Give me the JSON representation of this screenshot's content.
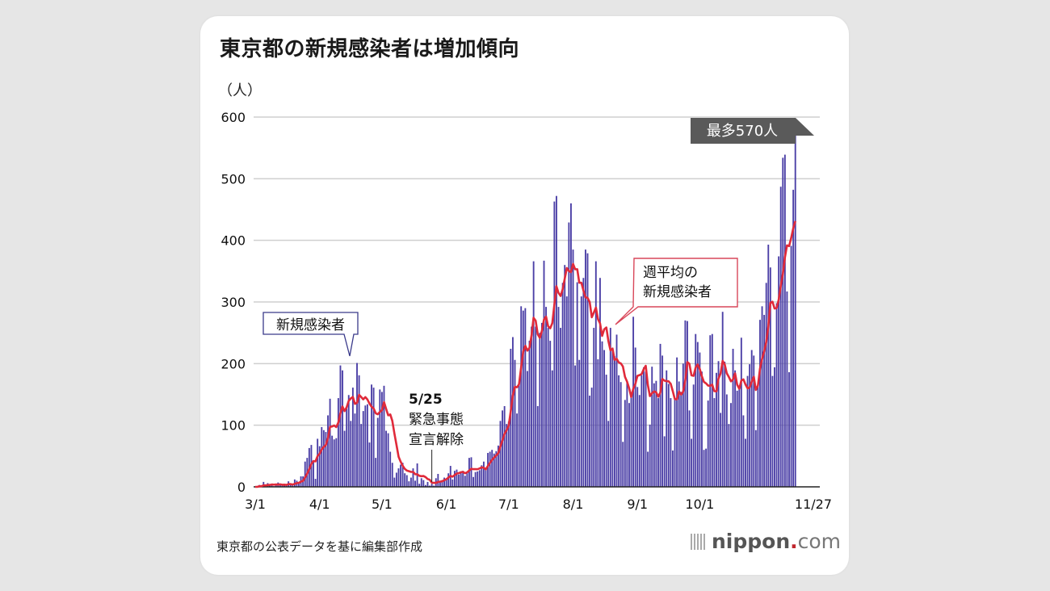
{
  "header": {
    "title": "東京都の新規感染者は増加傾向"
  },
  "footer": {
    "source": "東京都の公表データを基に編集部作成",
    "logo": {
      "nip": "nippon",
      "dot": ".",
      "com": "com"
    }
  },
  "colors": {
    "bar": "#4b3fa6",
    "line": "#e02a3a",
    "callout_dark": "#5a5a5a",
    "grid": "#cfcfcf",
    "card": "#ffffff",
    "background": "#e6e6e6"
  },
  "chart_data": {
    "type": "bar",
    "title": "東京都の新規感染者は増加傾向",
    "ylabel": "（人）",
    "xlabel": "",
    "ylim": [
      0,
      600
    ],
    "yticks": [
      0,
      100,
      200,
      300,
      400,
      500,
      600
    ],
    "xticks": [
      {
        "label": "3/1",
        "day": 0
      },
      {
        "label": "4/1",
        "day": 31
      },
      {
        "label": "5/1",
        "day": 61
      },
      {
        "label": "6/1",
        "day": 92
      },
      {
        "label": "7/1",
        "day": 122
      },
      {
        "label": "8/1",
        "day": 153
      },
      {
        "label": "9/1",
        "day": 184
      },
      {
        "label": "10/1",
        "day": 214
      },
      {
        "label": "11/27",
        "day": 271
      }
    ],
    "x_start": "3/1",
    "x_end": "11/27",
    "grid": true,
    "series": [
      {
        "name": "新規感染者",
        "type": "bar",
        "values": [
          0,
          0,
          3,
          1,
          8,
          2,
          6,
          2,
          5,
          1,
          3,
          7,
          4,
          2,
          3,
          2,
          9,
          4,
          2,
          12,
          10,
          6,
          17,
          17,
          41,
          47,
          63,
          68,
          40,
          13,
          78,
          66,
          97,
          92,
          89,
          116,
          143,
          83,
          77,
          79,
          144,
          197,
          189,
          91,
          127,
          149,
          107,
          161,
          119,
          201,
          181,
          102,
          123,
          132,
          134,
          72,
          166,
          161,
          47,
          112,
          158,
          154,
          164,
          91,
          87,
          57,
          39,
          15,
          23,
          30,
          36,
          39,
          22,
          19,
          9,
          15,
          30,
          10,
          38,
          5,
          14,
          11,
          3,
          8,
          2,
          5,
          2,
          14,
          21,
          8,
          11,
          15,
          14,
          22,
          34,
          12,
          26,
          28,
          20,
          24,
          26,
          18,
          22,
          47,
          48,
          16,
          24,
          25,
          27,
          35,
          41,
          31,
          55,
          57,
          60,
          54,
          58,
          67,
          107,
          124,
          131,
          102,
          106,
          224,
          243,
          206,
          119,
          165,
          293,
          286,
          290,
          188,
          237,
          260,
          366,
          260,
          131,
          250,
          266,
          367,
          292,
          258,
          237,
          189,
          463,
          472,
          292,
          258,
          331,
          360,
          309,
          429,
          460,
          385,
          197,
          332,
          206,
          309,
          339,
          385,
          379,
          148,
          161,
          258,
          366,
          207,
          339,
          236,
          222,
          182,
          107,
          258,
          226,
          212,
          247,
          181,
          170,
          73,
          141,
          170,
          136,
          150,
          276,
          226,
          162,
          149,
          181,
          194,
          187,
          57,
          101,
          195,
          168,
          172,
          144,
          232,
          213,
          82,
          189,
          167,
          144,
          59,
          143,
          210,
          171,
          154,
          200,
          270,
          269,
          124,
          78,
          166,
          248,
          235,
          218,
          187,
          60,
          62,
          140,
          246,
          248,
          144,
          185,
          204,
          120,
          284,
          203,
          150,
          102,
          136,
          224,
          189,
          156,
          158,
          242,
          116,
          78,
          180,
          199,
          222,
          213,
          92,
          167,
          271,
          293,
          279,
          331,
          393,
          356,
          180,
          194,
          298,
          374,
          487,
          534,
          539,
          317,
          186,
          391,
          482,
          570
        ]
      },
      {
        "name": "週平均の新規感染者",
        "type": "line"
      }
    ],
    "annotations": [
      {
        "text": "新規感染者",
        "target": "bars"
      },
      {
        "text_lines": [
          "週平均の",
          "新規感染者"
        ],
        "target": "line"
      },
      {
        "text_lines": [
          "5/25",
          "緊急事態",
          "宣言解除"
        ],
        "day": 85
      },
      {
        "text": "最多570人",
        "day": 271,
        "value": 570
      }
    ]
  }
}
